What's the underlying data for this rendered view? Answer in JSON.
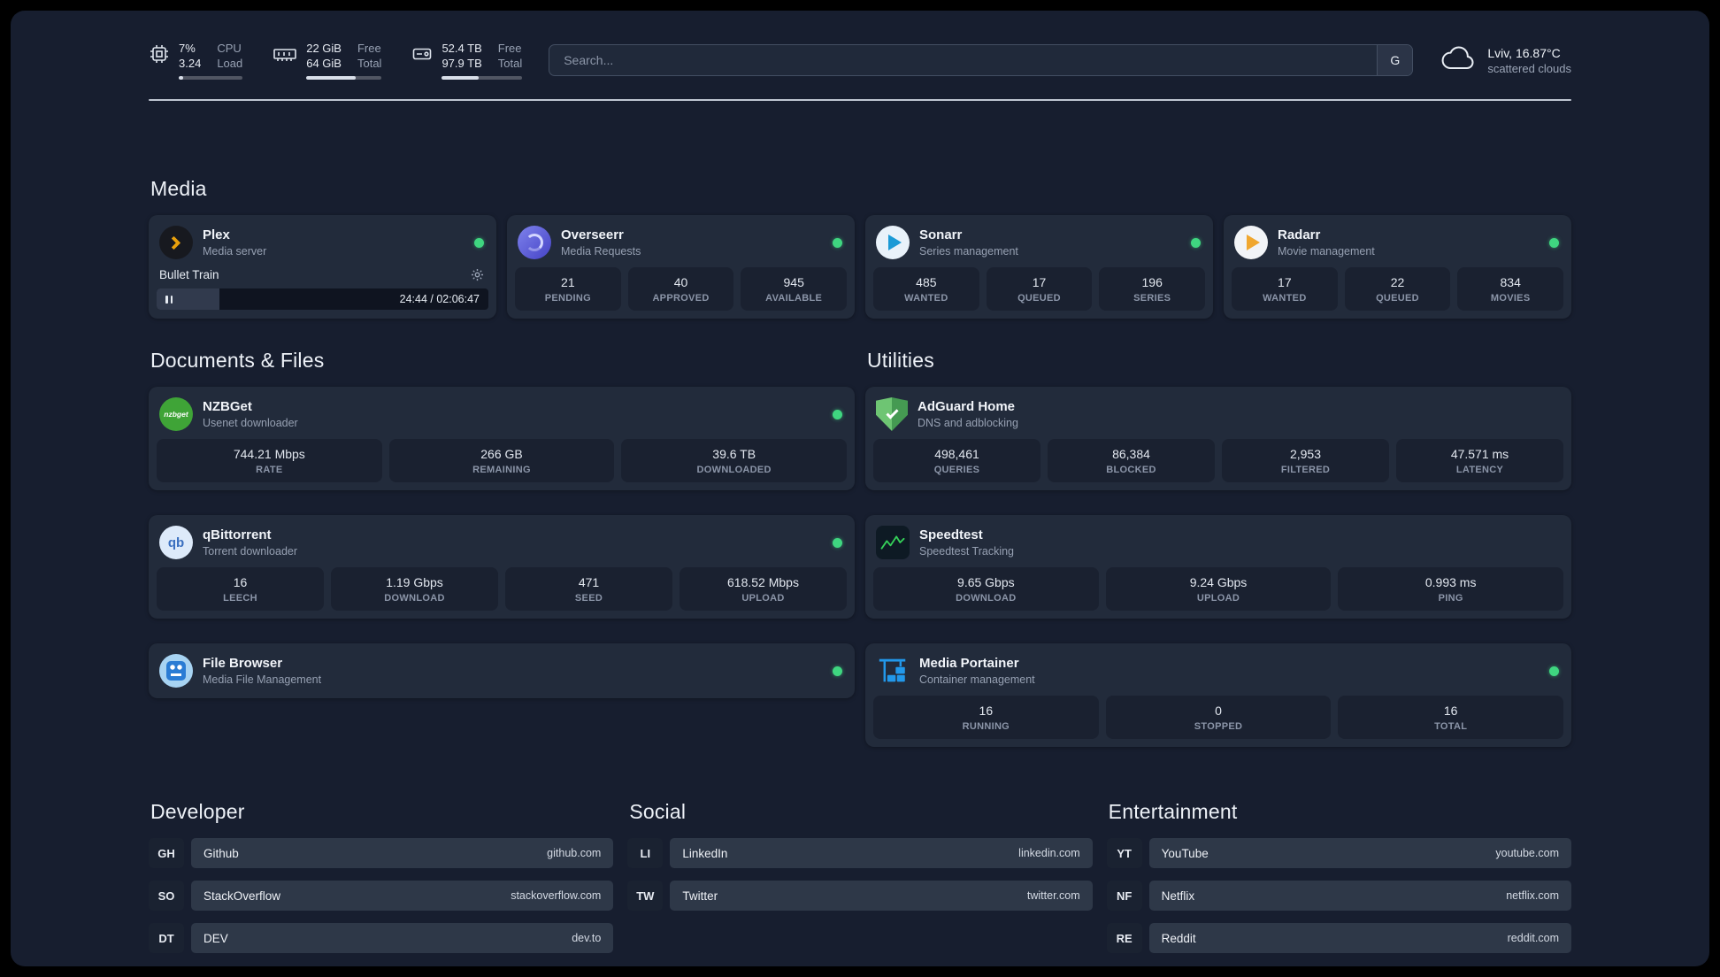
{
  "topbar": {
    "cpu": {
      "value_top": "7%",
      "value_bottom": "3.24",
      "label_top": "CPU",
      "label_bottom": "Load",
      "bar_percent": 7
    },
    "ram": {
      "value_top": "22 GiB",
      "value_bottom": "64 GiB",
      "label_top": "Free",
      "label_bottom": "Total",
      "bar_percent": 66
    },
    "disk": {
      "value_top": "52.4 TB",
      "value_bottom": "97.9 TB",
      "label_top": "Free",
      "label_bottom": "Total",
      "bar_percent": 46
    },
    "search": {
      "placeholder": "Search...",
      "button_label": "G"
    },
    "weather": {
      "location": "Lviv, 16.87°C",
      "condition": "scattered clouds"
    }
  },
  "media": {
    "title": "Media",
    "plex": {
      "name": "Plex",
      "subtitle": "Media server",
      "now_playing": "Bullet Train",
      "time": "24:44 / 02:06:47",
      "progress_percent": 19
    },
    "overseerr": {
      "name": "Overseerr",
      "subtitle": "Media Requests",
      "stats": [
        {
          "value": "21",
          "label": "PENDING"
        },
        {
          "value": "40",
          "label": "APPROVED"
        },
        {
          "value": "945",
          "label": "AVAILABLE"
        }
      ]
    },
    "sonarr": {
      "name": "Sonarr",
      "subtitle": "Series management",
      "stats": [
        {
          "value": "485",
          "label": "WANTED"
        },
        {
          "value": "17",
          "label": "QUEUED"
        },
        {
          "value": "196",
          "label": "SERIES"
        }
      ]
    },
    "radarr": {
      "name": "Radarr",
      "subtitle": "Movie management",
      "stats": [
        {
          "value": "17",
          "label": "WANTED"
        },
        {
          "value": "22",
          "label": "QUEUED"
        },
        {
          "value": "834",
          "label": "MOVIES"
        }
      ]
    }
  },
  "documents": {
    "title": "Documents & Files",
    "nzbget": {
      "name": "NZBGet",
      "subtitle": "Usenet downloader",
      "icon_label": "nzbget",
      "stats": [
        {
          "value": "744.21 Mbps",
          "label": "RATE"
        },
        {
          "value": "266 GB",
          "label": "REMAINING"
        },
        {
          "value": "39.6 TB",
          "label": "DOWNLOADED"
        }
      ]
    },
    "qbittorrent": {
      "name": "qBittorrent",
      "subtitle": "Torrent downloader",
      "icon_label": "qb",
      "stats": [
        {
          "value": "16",
          "label": "LEECH"
        },
        {
          "value": "1.19 Gbps",
          "label": "DOWNLOAD"
        },
        {
          "value": "471",
          "label": "SEED"
        },
        {
          "value": "618.52 Mbps",
          "label": "UPLOAD"
        }
      ]
    },
    "filebrowser": {
      "name": "File Browser",
      "subtitle": "Media File Management"
    }
  },
  "utilities": {
    "title": "Utilities",
    "adguard": {
      "name": "AdGuard Home",
      "subtitle": "DNS and adblocking",
      "stats": [
        {
          "value": "498,461",
          "label": "QUERIES"
        },
        {
          "value": "86,384",
          "label": "BLOCKED"
        },
        {
          "value": "2,953",
          "label": "FILTERED"
        },
        {
          "value": "47.571 ms",
          "label": "LATENCY"
        }
      ]
    },
    "speedtest": {
      "name": "Speedtest",
      "subtitle": "Speedtest Tracking",
      "stats": [
        {
          "value": "9.65 Gbps",
          "label": "DOWNLOAD"
        },
        {
          "value": "9.24 Gbps",
          "label": "UPLOAD"
        },
        {
          "value": "0.993 ms",
          "label": "PING"
        }
      ]
    },
    "portainer": {
      "name": "Media Portainer",
      "subtitle": "Container management",
      "stats": [
        {
          "value": "16",
          "label": "RUNNING"
        },
        {
          "value": "0",
          "label": "STOPPED"
        },
        {
          "value": "16",
          "label": "TOTAL"
        }
      ]
    }
  },
  "bookmarks": {
    "developer": {
      "title": "Developer",
      "items": [
        {
          "abbr": "GH",
          "name": "Github",
          "url": "github.com"
        },
        {
          "abbr": "SO",
          "name": "StackOverflow",
          "url": "stackoverflow.com"
        },
        {
          "abbr": "DT",
          "name": "DEV",
          "url": "dev.to"
        }
      ]
    },
    "social": {
      "title": "Social",
      "items": [
        {
          "abbr": "LI",
          "name": "LinkedIn",
          "url": "linkedin.com"
        },
        {
          "abbr": "TW",
          "name": "Twitter",
          "url": "twitter.com"
        }
      ]
    },
    "entertainment": {
      "title": "Entertainment",
      "items": [
        {
          "abbr": "YT",
          "name": "YouTube",
          "url": "youtube.com"
        },
        {
          "abbr": "NF",
          "name": "Netflix",
          "url": "netflix.com"
        },
        {
          "abbr": "RE",
          "name": "Reddit",
          "url": "reddit.com"
        }
      ]
    }
  }
}
